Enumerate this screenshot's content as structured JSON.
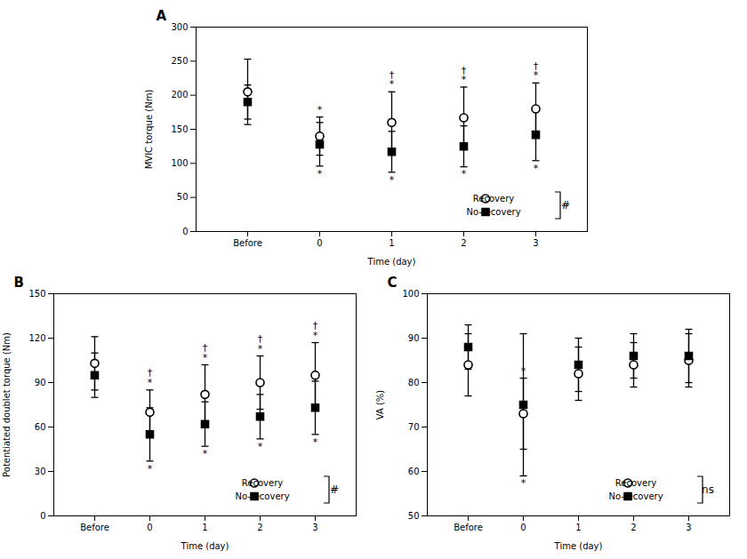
{
  "chart_data": [
    {
      "type": "errorbar",
      "title": "A",
      "xlabel": "Time (day)",
      "ylabel": "MVIC torque (Nm)",
      "categories": [
        "Before",
        "0",
        "1",
        "2",
        "3"
      ],
      "series": [
        {
          "name": "Recovery",
          "color": "#000000",
          "marker": "hollow-circle",
          "values": [
            205,
            140,
            160,
            167,
            180
          ],
          "errors": [
            48,
            28,
            45,
            45,
            38
          ]
        },
        {
          "name": "No-recovery",
          "color": "#000000",
          "marker": "square",
          "values": [
            190,
            128,
            117,
            125,
            142
          ],
          "errors": [
            25,
            32,
            30,
            30,
            38
          ]
        }
      ],
      "ylim": [
        0,
        300
      ],
      "yticks": [
        0,
        50,
        100,
        150,
        200,
        250,
        300
      ],
      "legend": "lower right",
      "annotations": [
        {
          "series": "Recovery",
          "category": "0",
          "position": "above",
          "text": "*"
        },
        {
          "series": "Recovery",
          "category": "1",
          "position": "above",
          "text": "†\n*"
        },
        {
          "series": "Recovery",
          "category": "2",
          "position": "above",
          "text": "†\n*"
        },
        {
          "series": "Recovery",
          "category": "3",
          "position": "above",
          "text": "†\n*"
        },
        {
          "series": "No-recovery",
          "category": "0",
          "position": "below",
          "text": "*"
        },
        {
          "series": "No-recovery",
          "category": "1",
          "position": "below",
          "text": "*"
        },
        {
          "series": "No-recovery",
          "category": "2",
          "position": "below",
          "text": "*"
        },
        {
          "series": "No-recovery",
          "category": "3",
          "position": "below",
          "text": "*"
        },
        {
          "position": "legend",
          "text": "#"
        }
      ]
    },
    {
      "type": "errorbar",
      "title": "B",
      "xlabel": "Time (day)",
      "ylabel": "Potentiated doublet torque (Nm)",
      "categories": [
        "Before",
        "0",
        "1",
        "2",
        "3"
      ],
      "series": [
        {
          "name": "Recovery",
          "color": "#000000",
          "marker": "hollow-circle",
          "values": [
            103,
            70,
            82,
            90,
            95
          ],
          "errors": [
            18,
            15,
            20,
            18,
            22
          ]
        },
        {
          "name": "No-recovery",
          "color": "#000000",
          "marker": "square",
          "values": [
            95,
            55,
            62,
            67,
            73
          ],
          "errors": [
            15,
            18,
            15,
            15,
            18
          ]
        }
      ],
      "ylim": [
        0,
        150
      ],
      "yticks": [
        0,
        30,
        60,
        90,
        120,
        150
      ],
      "legend": "lower right",
      "annotations": [
        {
          "series": "Recovery",
          "category": "0",
          "position": "above",
          "text": "†\n*"
        },
        {
          "series": "Recovery",
          "category": "1",
          "position": "above",
          "text": "†\n*"
        },
        {
          "series": "Recovery",
          "category": "2",
          "position": "above",
          "text": "†\n*"
        },
        {
          "series": "Recovery",
          "category": "3",
          "position": "above",
          "text": "†\n*"
        },
        {
          "series": "No-recovery",
          "category": "0",
          "position": "below",
          "text": "*"
        },
        {
          "series": "No-recovery",
          "category": "1",
          "position": "below",
          "text": "*"
        },
        {
          "series": "No-recovery",
          "category": "2",
          "position": "below",
          "text": "*"
        },
        {
          "series": "No-recovery",
          "category": "3",
          "position": "below",
          "text": "*"
        },
        {
          "position": "legend",
          "text": "#"
        }
      ]
    },
    {
      "type": "errorbar",
      "title": "C",
      "xlabel": "Time (day)",
      "ylabel": "VA (%)",
      "categories": [
        "Before",
        "0",
        "1",
        "2",
        "3"
      ],
      "series": [
        {
          "name": "Recovery",
          "color": "#000000",
          "marker": "hollow-circle",
          "values": [
            84,
            73,
            82,
            84,
            85
          ],
          "errors": [
            7,
            8,
            6,
            5,
            6
          ]
        },
        {
          "name": "No-recovery",
          "color": "#000000",
          "marker": "square",
          "values": [
            88,
            75,
            84,
            86,
            86
          ],
          "errors": [
            5,
            16,
            6,
            5,
            6
          ]
        }
      ],
      "ylim": [
        50,
        100
      ],
      "yticks": [
        50,
        60,
        70,
        80,
        90,
        100
      ],
      "legend": "lower right",
      "annotations": [
        {
          "series": "Recovery",
          "category": "0",
          "position": "above",
          "text": "*"
        },
        {
          "series": "No-recovery",
          "category": "0",
          "position": "below",
          "text": "*"
        },
        {
          "position": "legend",
          "text": "ns"
        }
      ]
    }
  ]
}
